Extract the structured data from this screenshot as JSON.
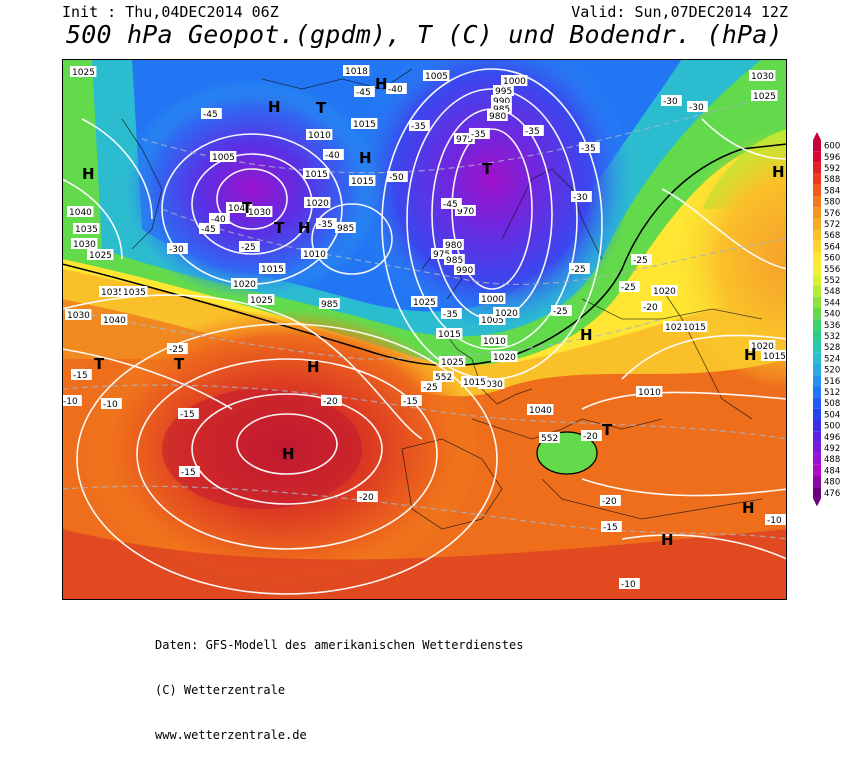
{
  "header": {
    "init": "Init : Thu,04DEC2014 06Z",
    "valid": "Valid: Sun,07DEC2014 12Z",
    "title": "500 hPa Geopot.(gpdm), T (C) und Bodendr. (hPa)"
  },
  "colorbar": {
    "levels": [
      "600",
      "596",
      "592",
      "588",
      "584",
      "580",
      "576",
      "572",
      "568",
      "564",
      "560",
      "556",
      "552",
      "548",
      "544",
      "540",
      "536",
      "532",
      "528",
      "524",
      "520",
      "516",
      "512",
      "508",
      "504",
      "500",
      "496",
      "492",
      "488",
      "484",
      "480",
      "476"
    ],
    "colors": [
      "#c8003c",
      "#d80a32",
      "#e42028",
      "#ec3a1e",
      "#f05a1c",
      "#f4781e",
      "#f69422",
      "#f8aa26",
      "#fac02a",
      "#fcd42e",
      "#fee632",
      "#f6f034",
      "#dcf034",
      "#b6ea34",
      "#8ee23c",
      "#62da4c",
      "#3cd46a",
      "#2ecc8c",
      "#2ac6ae",
      "#2cbcd0",
      "#2aa8e6",
      "#2690f0",
      "#2276f4",
      "#1e5cf2",
      "#2244ee",
      "#3a30e8",
      "#5a22e2",
      "#7c18dc",
      "#9a10d2",
      "#b00ac6",
      "#8e06a4",
      "#6a0280"
    ]
  },
  "map": {
    "pressure_labels": [
      "1025",
      "1018",
      "1005",
      "1000",
      "995",
      "990",
      "985",
      "980",
      "975",
      "970",
      "1015",
      "1010",
      "1020",
      "1040",
      "1035",
      "1030",
      "1005",
      "1040",
      "1015",
      "1000",
      "1030",
      "1020",
      "1025",
      "1015",
      "1025",
      "1035",
      "1040",
      "1030",
      "1035",
      "1030",
      "1025",
      "1025",
      "1015",
      "1020",
      "1030",
      "1015",
      "1020",
      "1025",
      "1015",
      "1010",
      "1025",
      "1020",
      "1015",
      "1005",
      "1010",
      "1020",
      "1040",
      "985",
      "985",
      "980",
      "975",
      "990",
      "985",
      "1010",
      "1015"
    ],
    "temperature_labels": [
      "-45",
      "-40",
      "-45",
      "-35",
      "-35",
      "-35",
      "-40",
      "-45",
      "-35",
      "-30",
      "-40",
      "-45",
      "-50",
      "-30",
      "-25",
      "-35",
      "-25",
      "-25",
      "-30",
      "-30",
      "-25",
      "-20",
      "-35",
      "-25",
      "-15",
      "-10",
      "-10",
      "-15",
      "-20",
      "-15",
      "-25",
      "-15",
      "-20",
      "-20",
      "-15",
      "-10",
      "-10",
      "-20",
      "-25"
    ],
    "highs": [
      "H",
      "H",
      "H",
      "H",
      "H",
      "H",
      "H",
      "H",
      "H",
      "H",
      "H",
      "H"
    ],
    "lows": [
      "T",
      "T",
      "T",
      "T",
      "T",
      "T",
      "T"
    ],
    "geopot_labels": [
      "552",
      "552"
    ]
  },
  "credits": {
    "line1": "Daten: GFS-Modell des amerikanischen Wetterdienstes",
    "line2": "(C) Wetterzentrale",
    "line3": "www.wetterzentrale.de"
  }
}
